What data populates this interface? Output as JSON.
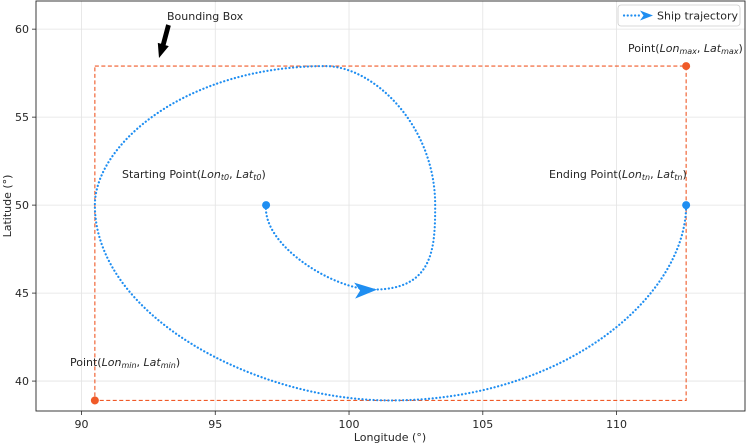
{
  "chart_data": {
    "type": "line",
    "xlabel": "Longitude (°)",
    "ylabel": "Latitude (°)",
    "xlim": [
      88.3,
      114.8
    ],
    "ylim": [
      38.3,
      61.6
    ],
    "xticks": [
      "90",
      "95",
      "100",
      "105",
      "110"
    ],
    "yticks": [
      "40",
      "45",
      "50",
      "55",
      "60"
    ],
    "grid": true,
    "legend": {
      "position": "top-right",
      "entries": [
        "Ship trajectory"
      ]
    },
    "series": [
      {
        "name": "Ship trajectory",
        "style": "dotted",
        "color": "#1f8ef1",
        "spiral": {
          "start": [
            96.9,
            50.0
          ],
          "end": [
            112.6,
            50.0
          ],
          "lon_min": 90.5,
          "lon_max": 112.6,
          "lat_min": 38.9,
          "lat_max": 57.9,
          "arrow_at": [
            100.9,
            45.2
          ]
        }
      }
    ],
    "bounding_box": {
      "lon_min": 90.5,
      "lon_max": 112.6,
      "lat_min": 38.9,
      "lat_max": 57.9,
      "color": "#f05a28",
      "style": "dashed"
    },
    "points": [
      {
        "name": "start",
        "lon": 96.9,
        "lat": 50.0,
        "color": "#1f8ef1"
      },
      {
        "name": "end",
        "lon": 112.6,
        "lat": 50.0,
        "color": "#1f8ef1"
      },
      {
        "name": "max",
        "lon": 112.6,
        "lat": 57.9,
        "color": "#f05a28"
      },
      {
        "name": "min",
        "lon": 90.5,
        "lat": 38.9,
        "color": "#f05a28"
      }
    ],
    "annotations": {
      "bounding_box_label": "Bounding Box",
      "start": {
        "prefix": "Starting Point(",
        "a": "Lon",
        "a_sub": "t0",
        "sep": ", ",
        "b": "Lat",
        "b_sub": "t0",
        "suffix": ")"
      },
      "end": {
        "prefix": "Ending Point(",
        "a": "Lon",
        "a_sub": "tn",
        "sep": ", ",
        "b": "Lat",
        "b_sub": "tn",
        "suffix": ")"
      },
      "max": {
        "prefix": "Point(",
        "a": "Lon",
        "a_sub": "max",
        "sep": ", ",
        "b": "Lat",
        "b_sub": "max",
        "suffix": ")"
      },
      "min": {
        "prefix": "Point(",
        "a": "Lon",
        "a_sub": "min",
        "sep": ", ",
        "b": "Lat",
        "b_sub": "min",
        "suffix": ")"
      }
    }
  }
}
